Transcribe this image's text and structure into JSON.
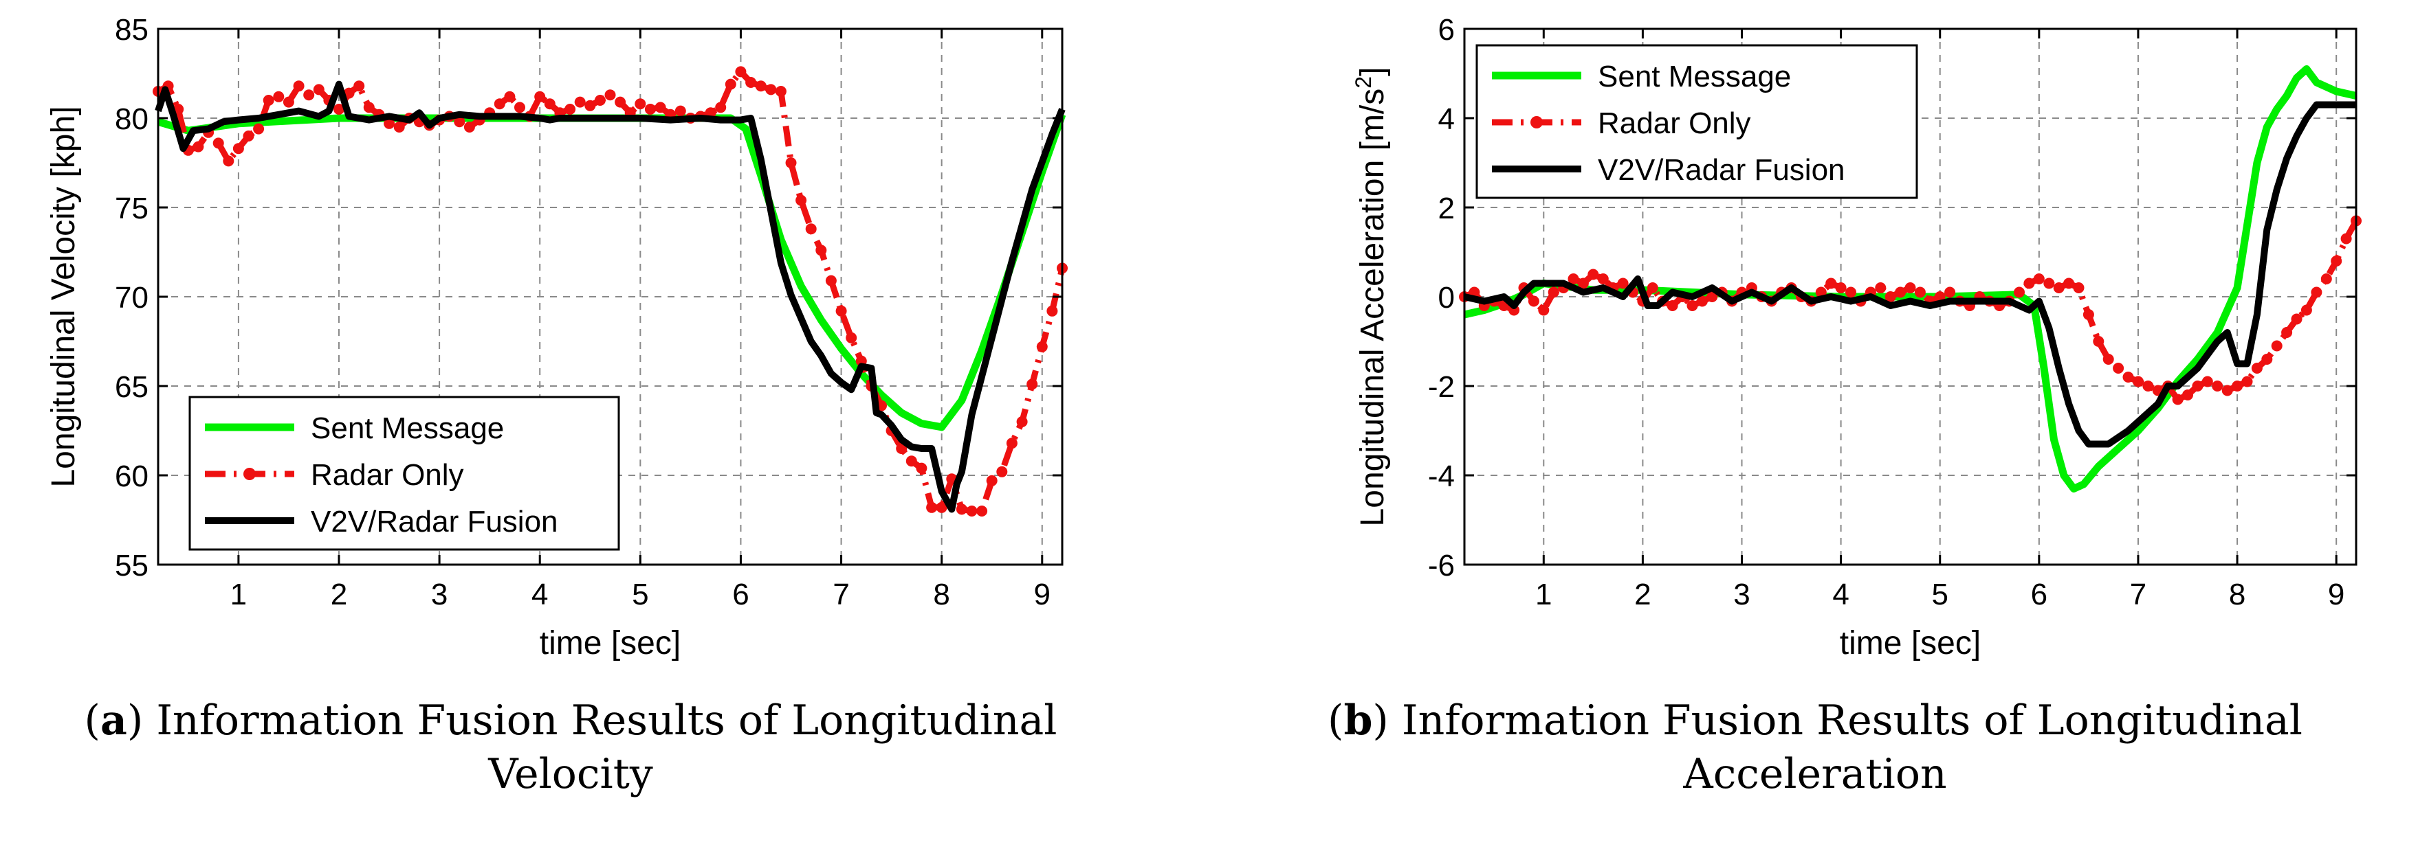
{
  "chart_data": [
    {
      "type": "line",
      "panel": "a",
      "caption_letter": "a",
      "caption_text": "Information Fusion Results of Longitudinal Velocity",
      "xlabel": "time [sec]",
      "ylabel": "Longitudinal Velocity [kph]",
      "xlim": [
        0.2,
        9.2
      ],
      "ylim": [
        55,
        85
      ],
      "xticks": [
        1,
        2,
        3,
        4,
        5,
        6,
        7,
        8,
        9
      ],
      "yticks": [
        55,
        60,
        65,
        70,
        75,
        80,
        85
      ],
      "grid": true,
      "legend_position": "bottom-left",
      "series": [
        {
          "name": "Sent Message",
          "color": "#00ee00",
          "style": "solid",
          "x": [
            0.2,
            0.5,
            1,
            2,
            3,
            4,
            5,
            5.9,
            6.05,
            6.2,
            6.4,
            6.6,
            6.8,
            7.0,
            7.2,
            7.4,
            7.6,
            7.8,
            8.0,
            8.2,
            8.4,
            8.6,
            8.8,
            9.0,
            9.2
          ],
          "y": [
            79.8,
            79.3,
            79.7,
            80.0,
            80.0,
            80.0,
            80.0,
            80.0,
            79.4,
            76.8,
            73.2,
            70.6,
            68.7,
            67.1,
            65.7,
            64.5,
            63.5,
            62.9,
            62.7,
            64.2,
            67.0,
            70.2,
            73.6,
            77.0,
            80.2
          ]
        },
        {
          "name": "Radar Only",
          "color": "#ee1111",
          "style": "dash-dot",
          "x": [
            0.2,
            0.3,
            0.4,
            0.5,
            0.6,
            0.7,
            0.8,
            0.9,
            1.0,
            1.1,
            1.2,
            1.3,
            1.4,
            1.5,
            1.6,
            1.7,
            1.8,
            1.9,
            2.0,
            2.1,
            2.2,
            2.3,
            2.4,
            2.5,
            2.6,
            2.7,
            2.8,
            2.9,
            3.0,
            3.1,
            3.2,
            3.3,
            3.4,
            3.5,
            3.6,
            3.7,
            3.8,
            3.9,
            4.0,
            4.1,
            4.2,
            4.3,
            4.4,
            4.5,
            4.6,
            4.7,
            4.8,
            4.9,
            5.0,
            5.1,
            5.2,
            5.3,
            5.4,
            5.5,
            5.6,
            5.7,
            5.8,
            5.9,
            6.0,
            6.1,
            6.2,
            6.3,
            6.4,
            6.5,
            6.6,
            6.7,
            6.8,
            6.9,
            7.0,
            7.1,
            7.2,
            7.3,
            7.4,
            7.5,
            7.6,
            7.7,
            7.8,
            7.9,
            8.0,
            8.1,
            8.2,
            8.3,
            8.4,
            8.5,
            8.6,
            8.7,
            8.8,
            8.9,
            9.0,
            9.1,
            9.2
          ],
          "y": [
            81.5,
            81.8,
            80.5,
            78.2,
            78.4,
            79.2,
            78.6,
            77.6,
            78.3,
            79.0,
            79.4,
            81.0,
            81.2,
            80.9,
            81.8,
            81.3,
            81.6,
            81.0,
            80.5,
            81.4,
            81.8,
            80.6,
            80.2,
            79.7,
            79.5,
            80.0,
            79.8,
            79.6,
            79.9,
            80.1,
            79.8,
            79.5,
            79.9,
            80.3,
            80.8,
            81.2,
            80.6,
            80.1,
            81.2,
            80.8,
            80.3,
            80.5,
            80.9,
            80.7,
            81.0,
            81.3,
            80.9,
            80.3,
            80.8,
            80.5,
            80.6,
            80.2,
            80.4,
            80.0,
            80.1,
            80.3,
            80.6,
            81.9,
            82.6,
            82.0,
            81.8,
            81.6,
            81.5,
            77.5,
            75.4,
            73.8,
            72.6,
            70.9,
            69.2,
            67.7,
            66.4,
            65.0,
            63.9,
            62.5,
            61.5,
            60.8,
            60.4,
            58.2,
            58.2,
            59.8,
            58.1,
            58.0,
            58.0,
            59.7,
            60.2,
            61.8,
            63.0,
            65.1,
            67.2,
            69.2,
            71.6
          ]
        },
        {
          "name": "V2V/Radar Fusion",
          "color": "#000000",
          "style": "solid",
          "x": [
            0.2,
            0.27,
            0.35,
            0.45,
            0.55,
            0.7,
            0.85,
            1.0,
            1.2,
            1.4,
            1.6,
            1.8,
            1.9,
            2.0,
            2.1,
            2.3,
            2.5,
            2.7,
            2.8,
            2.9,
            3.0,
            3.2,
            3.4,
            3.6,
            3.8,
            4.0,
            4.1,
            4.2,
            4.3,
            4.5,
            4.8,
            5.0,
            5.3,
            5.6,
            5.8,
            6.0,
            6.1,
            6.2,
            6.3,
            6.4,
            6.5,
            6.6,
            6.7,
            6.8,
            6.9,
            7.0,
            7.1,
            7.2,
            7.3,
            7.35,
            7.4,
            7.5,
            7.6,
            7.7,
            7.8,
            7.9,
            7.95,
            8.0,
            8.1,
            8.15,
            8.2,
            8.3,
            8.5,
            8.7,
            8.9,
            9.1,
            9.2
          ],
          "y": [
            80.4,
            81.6,
            80.2,
            78.3,
            79.3,
            79.4,
            79.8,
            79.9,
            80.0,
            80.2,
            80.4,
            80.1,
            80.4,
            81.9,
            80.1,
            79.9,
            80.1,
            79.9,
            80.3,
            79.6,
            80.0,
            80.2,
            80.1,
            80.1,
            80.1,
            80.0,
            79.9,
            80.0,
            80.0,
            80.0,
            80.0,
            80.0,
            79.9,
            80.0,
            79.9,
            79.9,
            80.0,
            77.7,
            74.8,
            71.9,
            70.1,
            68.8,
            67.5,
            66.7,
            65.7,
            65.2,
            64.8,
            66.1,
            66.0,
            63.5,
            63.4,
            62.8,
            62.0,
            61.6,
            61.5,
            61.5,
            60.3,
            59.1,
            58.1,
            59.5,
            60.2,
            63.4,
            67.7,
            72.0,
            76.0,
            79.1,
            80.5
          ]
        }
      ]
    },
    {
      "type": "line",
      "panel": "b",
      "caption_letter": "b",
      "caption_text": "Information Fusion Results of Longitudinal Acceleration",
      "xlabel": "time [sec]",
      "ylabel": "Longitudinal Acceleration [m/s",
      "ylabel_sup": "2",
      "ylabel_end": "]",
      "xlim": [
        0.2,
        9.2
      ],
      "ylim": [
        -6,
        6
      ],
      "xticks": [
        1,
        2,
        3,
        4,
        5,
        6,
        7,
        8,
        9
      ],
      "yticks": [
        -6,
        -4,
        -2,
        0,
        2,
        4,
        6
      ],
      "grid": true,
      "legend_position": "top-left",
      "series": [
        {
          "name": "Sent Message",
          "color": "#00ee00",
          "style": "solid",
          "x": [
            0.2,
            0.4,
            0.6,
            0.8,
            1.0,
            1.5,
            2.0,
            3.0,
            4.0,
            5.0,
            5.8,
            5.95,
            6.05,
            6.15,
            6.25,
            6.35,
            6.45,
            6.6,
            6.8,
            7.0,
            7.2,
            7.4,
            7.6,
            7.8,
            8.0,
            8.1,
            8.2,
            8.3,
            8.4,
            8.5,
            8.6,
            8.7,
            8.8,
            9.0,
            9.2
          ],
          "y": [
            -0.4,
            -0.3,
            -0.15,
            0.05,
            0.3,
            0.15,
            0.15,
            0.05,
            0.0,
            0.0,
            0.05,
            -0.2,
            -1.6,
            -3.2,
            -4.0,
            -4.3,
            -4.2,
            -3.8,
            -3.4,
            -3.0,
            -2.5,
            -1.9,
            -1.4,
            -0.8,
            0.2,
            1.6,
            3.0,
            3.8,
            4.2,
            4.5,
            4.9,
            5.1,
            4.8,
            4.6,
            4.5
          ]
        },
        {
          "name": "Radar Only",
          "color": "#ee1111",
          "style": "dash-dot",
          "x": [
            0.2,
            0.3,
            0.4,
            0.5,
            0.6,
            0.7,
            0.8,
            0.9,
            1.0,
            1.1,
            1.2,
            1.3,
            1.4,
            1.5,
            1.6,
            1.7,
            1.8,
            1.9,
            2.0,
            2.1,
            2.2,
            2.3,
            2.4,
            2.5,
            2.6,
            2.7,
            2.8,
            2.9,
            3.0,
            3.1,
            3.2,
            3.3,
            3.4,
            3.5,
            3.6,
            3.7,
            3.8,
            3.9,
            4.0,
            4.1,
            4.2,
            4.3,
            4.4,
            4.5,
            4.6,
            4.7,
            4.8,
            4.9,
            5.0,
            5.1,
            5.2,
            5.3,
            5.4,
            5.5,
            5.6,
            5.7,
            5.8,
            5.9,
            6.0,
            6.1,
            6.2,
            6.3,
            6.4,
            6.5,
            6.6,
            6.7,
            6.8,
            6.9,
            7.0,
            7.1,
            7.2,
            7.3,
            7.4,
            7.5,
            7.6,
            7.7,
            7.8,
            7.9,
            8.0,
            8.1,
            8.2,
            8.3,
            8.4,
            8.5,
            8.6,
            8.7,
            8.8,
            8.9,
            9.0,
            9.1,
            9.2
          ],
          "y": [
            0.0,
            0.1,
            -0.2,
            -0.1,
            -0.2,
            -0.3,
            0.2,
            -0.1,
            -0.3,
            0.1,
            0.2,
            0.4,
            0.3,
            0.5,
            0.4,
            0.2,
            0.3,
            0.1,
            -0.1,
            0.2,
            -0.1,
            -0.2,
            0.0,
            -0.2,
            -0.1,
            0.0,
            0.1,
            -0.1,
            0.1,
            0.2,
            0.0,
            -0.1,
            0.1,
            0.2,
            0.0,
            -0.1,
            0.1,
            0.3,
            0.2,
            0.1,
            -0.1,
            0.1,
            0.2,
            0.0,
            0.1,
            0.2,
            0.1,
            -0.1,
            0.0,
            0.1,
            -0.1,
            -0.2,
            0.0,
            -0.1,
            -0.2,
            -0.1,
            0.1,
            0.3,
            0.4,
            0.3,
            0.2,
            0.3,
            0.2,
            -0.4,
            -1.0,
            -1.4,
            -1.6,
            -1.8,
            -1.9,
            -2.0,
            -2.1,
            -2.0,
            -2.3,
            -2.2,
            -2.0,
            -1.9,
            -2.0,
            -2.1,
            -2.0,
            -1.9,
            -1.6,
            -1.4,
            -1.1,
            -0.8,
            -0.5,
            -0.3,
            0.1,
            0.4,
            0.8,
            1.3,
            1.7
          ]
        },
        {
          "name": "V2V/Radar Fusion",
          "color": "#000000",
          "style": "solid",
          "x": [
            0.2,
            0.4,
            0.6,
            0.7,
            0.8,
            0.9,
            1.0,
            1.2,
            1.4,
            1.6,
            1.8,
            1.95,
            2.05,
            2.15,
            2.3,
            2.5,
            2.7,
            2.9,
            3.1,
            3.3,
            3.5,
            3.7,
            3.9,
            4.1,
            4.3,
            4.5,
            4.7,
            4.9,
            5.1,
            5.3,
            5.5,
            5.7,
            5.9,
            6.0,
            6.1,
            6.2,
            6.3,
            6.4,
            6.5,
            6.7,
            6.9,
            7.0,
            7.2,
            7.3,
            7.4,
            7.6,
            7.8,
            7.9,
            8.0,
            8.1,
            8.2,
            8.3,
            8.4,
            8.5,
            8.6,
            8.7,
            8.8,
            8.9,
            9.0,
            9.2
          ],
          "y": [
            0.0,
            -0.1,
            0.0,
            -0.2,
            0.1,
            0.3,
            0.3,
            0.3,
            0.1,
            0.2,
            0.0,
            0.4,
            -0.2,
            -0.2,
            0.1,
            0.0,
            0.2,
            -0.1,
            0.1,
            -0.1,
            0.2,
            -0.1,
            0.0,
            -0.1,
            0.0,
            -0.2,
            -0.1,
            -0.2,
            -0.1,
            -0.1,
            -0.1,
            -0.1,
            -0.3,
            -0.1,
            -0.7,
            -1.6,
            -2.4,
            -3.0,
            -3.3,
            -3.3,
            -3.0,
            -2.8,
            -2.4,
            -2.0,
            -2.0,
            -1.6,
            -1.0,
            -0.8,
            -1.5,
            -1.5,
            -0.4,
            1.5,
            2.4,
            3.1,
            3.6,
            4.0,
            4.3,
            4.3,
            4.3,
            4.3
          ]
        }
      ]
    }
  ]
}
